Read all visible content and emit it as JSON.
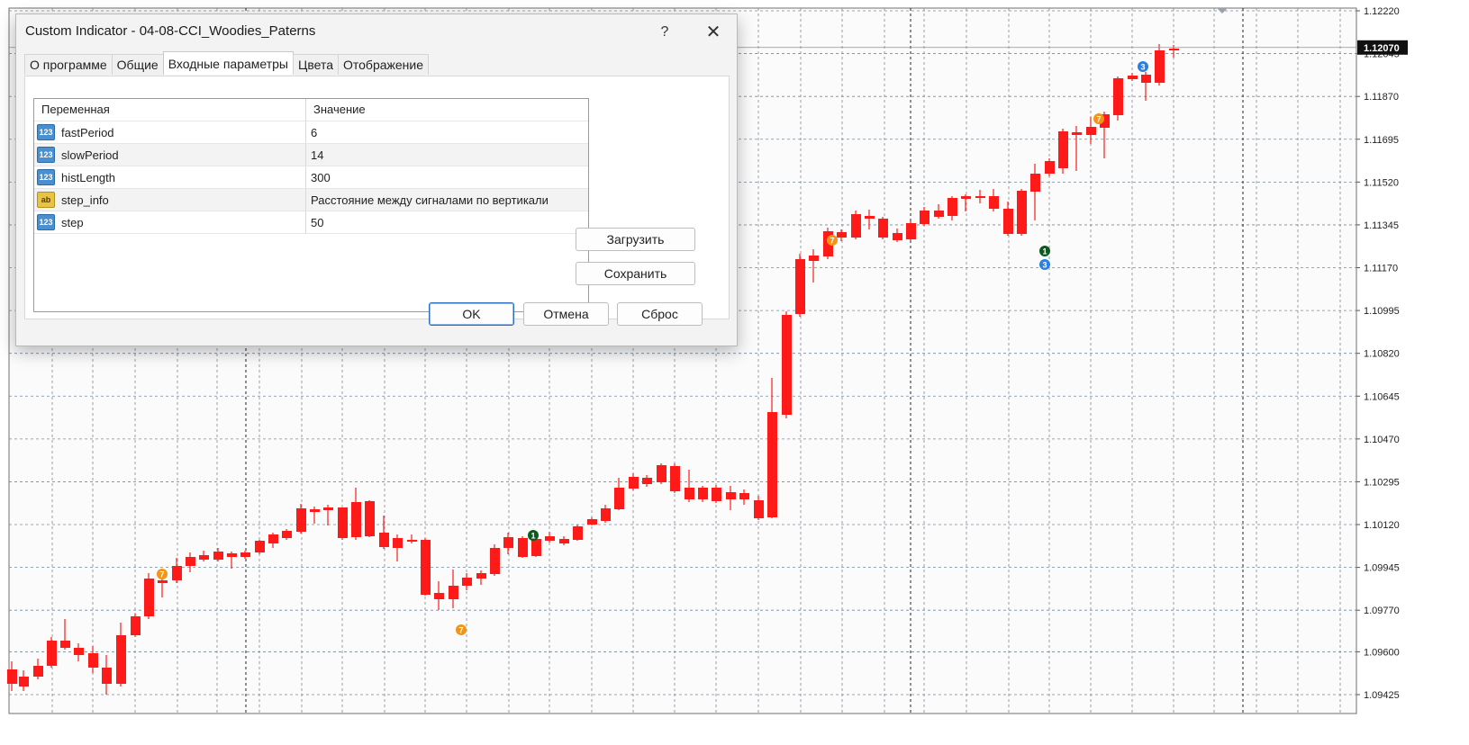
{
  "chart": {
    "current_price": "1.12070",
    "price_axis": [
      "1.12220",
      "1.12045",
      "1.11870",
      "1.11695",
      "1.11520",
      "1.11345",
      "1.11170",
      "1.10995",
      "1.10820",
      "1.10645",
      "1.10470",
      "1.10295",
      "1.10120",
      "1.09945",
      "1.09770",
      "1.09600",
      "1.09425"
    ],
    "bull_color": "#007400",
    "bear_color": "#ff1a1a",
    "grid_color": "#7a8a96",
    "markers": [
      {
        "type": "7",
        "color": "#f29416"
      },
      {
        "type": "7",
        "color": "#f29416"
      },
      {
        "type": "1",
        "color": "#0b5a1e"
      },
      {
        "type": "7",
        "color": "#f29416"
      },
      {
        "type": "1",
        "color": "#0b5a1e"
      },
      {
        "type": "3",
        "color": "#2a7fe0"
      },
      {
        "type": "7",
        "color": "#f29416"
      },
      {
        "type": "3",
        "color": "#2a7fe0"
      }
    ]
  },
  "dialog": {
    "title": "Custom Indicator - 04-08-CCI_Woodies_Paterns",
    "help_label": "?",
    "close_label": "✕",
    "tabs": [
      {
        "label": "О программе"
      },
      {
        "label": "Общие"
      },
      {
        "label": "Входные параметры",
        "active": true
      },
      {
        "label": "Цвета"
      },
      {
        "label": "Отображение"
      }
    ],
    "table": {
      "col_variable": "Переменная",
      "col_value": "Значение",
      "rows": [
        {
          "name": "fastPeriod",
          "value": "6",
          "type_icon": "123"
        },
        {
          "name": "slowPeriod",
          "value": "14",
          "type_icon": "123"
        },
        {
          "name": "histLength",
          "value": "300",
          "type_icon": "123"
        },
        {
          "name": "step_info",
          "value": "Расстояние между сигналами по вертикали",
          "type_icon": "ab"
        },
        {
          "name": "step",
          "value": "50",
          "type_icon": "123"
        }
      ]
    },
    "load_button": "Загрузить",
    "save_button": "Сохранить",
    "ok_button": "OK",
    "cancel_button": "Отмена",
    "reset_button": "Сброс"
  }
}
